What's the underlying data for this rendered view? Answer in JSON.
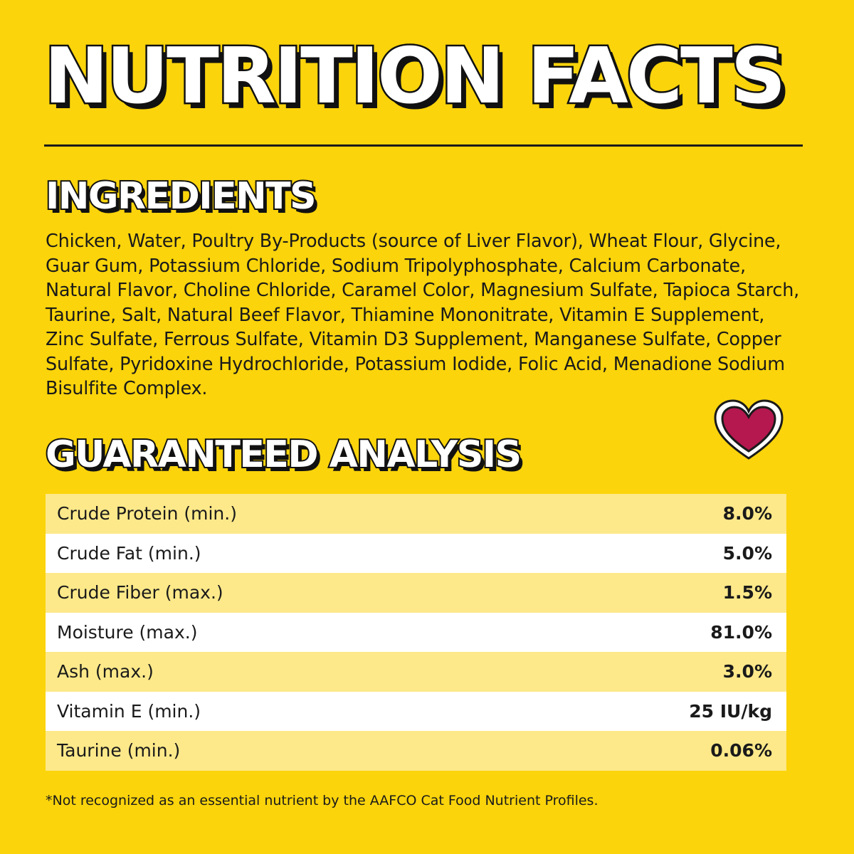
{
  "colors": {
    "background": "#fbd40b",
    "text": "#1a1a1a",
    "divider": "#1a1a1a",
    "row_light": "#fde98a",
    "row_white": "#ffffff",
    "heart_fill": "#b5174f"
  },
  "title": "NUTRITION FACTS",
  "ingredients": {
    "heading": "INGREDIENTS",
    "text": "Chicken, Water, Poultry By-Products (source of Liver Flavor), Wheat Flour, Glycine, Guar Gum, Potassium Chloride, Sodium Tripolyphosphate, Calcium Carbonate, Natural Flavor, Choline Chloride, Caramel Color, Magnesium Sulfate, Tapioca Starch, Taurine, Salt, Natural Beef Flavor, Thiamine Mononitrate, Vitamin E Supplement, Zinc Sulfate, Ferrous Sulfate, Vitamin D3 Supplement, Manganese Sulfate, Copper Sulfate, Pyridoxine Hydrochloride, Potassium Iodide, Folic Acid, Menadione Sodium Bisulfite Complex."
  },
  "badge_icon": "heart-icon",
  "analysis": {
    "heading": "GUARANTEED ANALYSIS",
    "rows": [
      {
        "name": "Crude Protein (min.)",
        "value": "8.0%"
      },
      {
        "name": "Crude Fat (min.)",
        "value": "5.0%"
      },
      {
        "name": "Crude Fiber (max.)",
        "value": "1.5%"
      },
      {
        "name": "Moisture (max.)",
        "value": "81.0%"
      },
      {
        "name": "Ash (max.)",
        "value": "3.0%"
      },
      {
        "name": "Vitamin E (min.)",
        "value": "25 IU/kg"
      },
      {
        "name": "Taurine (min.)",
        "value": "0.06%"
      }
    ]
  },
  "footnote": "*Not recognized as an essential nutrient by the AAFCO Cat Food Nutrient Profiles."
}
